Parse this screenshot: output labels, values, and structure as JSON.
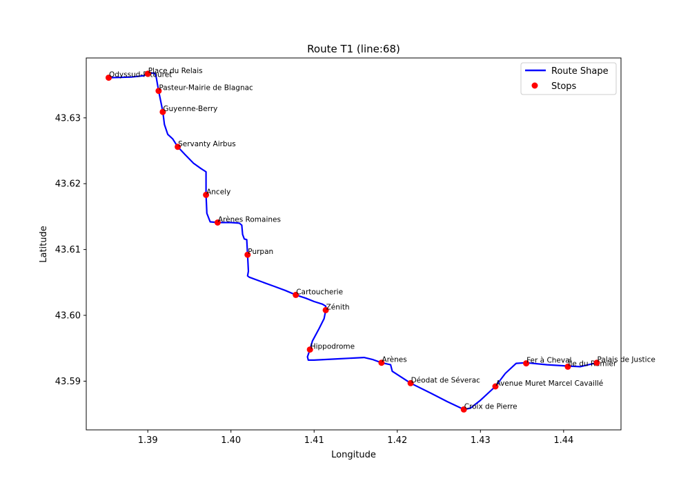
{
  "chart_data": {
    "type": "line",
    "title": "Route T1 (line:68)",
    "xlabel": "Longitude",
    "ylabel": "Latitude",
    "xlim": [
      1.3826,
      1.4469
    ],
    "ylim": [
      43.5826,
      43.6391
    ],
    "xticks": [
      1.39,
      1.4,
      1.41,
      1.42,
      1.43,
      1.44
    ],
    "xtick_labels": [
      "1.39",
      "1.40",
      "1.41",
      "1.42",
      "1.43",
      "1.44"
    ],
    "yticks": [
      43.59,
      43.6,
      43.61,
      43.62,
      43.63
    ],
    "ytick_labels": [
      "43.59",
      "43.60",
      "43.61",
      "43.62",
      "43.63"
    ],
    "grid": false,
    "legend": {
      "placement": "top-right",
      "entries": [
        {
          "label": "Route Shape",
          "kind": "line",
          "color": "#0000ff"
        },
        {
          "label": "Stops",
          "kind": "marker",
          "color": "#ff0000"
        }
      ]
    },
    "series": [
      {
        "name": "Route Shape",
        "color": "#0000ff",
        "points": [
          [
            1.3853,
            43.6361
          ],
          [
            1.388,
            43.6362
          ],
          [
            1.3895,
            43.6364
          ],
          [
            1.3902,
            43.6368
          ],
          [
            1.3908,
            43.6368
          ],
          [
            1.391,
            43.6363
          ],
          [
            1.3913,
            43.6341
          ],
          [
            1.3918,
            43.631
          ],
          [
            1.392,
            43.629
          ],
          [
            1.3924,
            43.6275
          ],
          [
            1.393,
            43.6268
          ],
          [
            1.3936,
            43.6256
          ],
          [
            1.3945,
            43.6244
          ],
          [
            1.3955,
            43.6231
          ],
          [
            1.3964,
            43.6223
          ],
          [
            1.397,
            43.6218
          ],
          [
            1.397,
            43.6183
          ],
          [
            1.3971,
            43.6155
          ],
          [
            1.3975,
            43.6142
          ],
          [
            1.3984,
            43.6141
          ],
          [
            1.4,
            43.6141
          ],
          [
            1.401,
            43.614
          ],
          [
            1.4013,
            43.6137
          ],
          [
            1.4014,
            43.6123
          ],
          [
            1.4016,
            43.6116
          ],
          [
            1.4019,
            43.6115
          ],
          [
            1.402,
            43.6092
          ],
          [
            1.4021,
            43.6067
          ],
          [
            1.402,
            43.606
          ],
          [
            1.4022,
            43.6058
          ],
          [
            1.4037,
            43.6051
          ],
          [
            1.4052,
            43.6044
          ],
          [
            1.4065,
            43.6038
          ],
          [
            1.4078,
            43.6031
          ],
          [
            1.409,
            43.6026
          ],
          [
            1.41,
            43.6021
          ],
          [
            1.411,
            43.6017
          ],
          [
            1.4114,
            43.6014
          ],
          [
            1.4114,
            43.6008
          ],
          [
            1.4112,
            43.5995
          ],
          [
            1.4106,
            43.598
          ],
          [
            1.4098,
            43.5961
          ],
          [
            1.4095,
            43.5948
          ],
          [
            1.4092,
            43.5937
          ],
          [
            1.4093,
            43.5932
          ],
          [
            1.41,
            43.5932
          ],
          [
            1.413,
            43.5934
          ],
          [
            1.416,
            43.5936
          ],
          [
            1.417,
            43.5933
          ],
          [
            1.4181,
            43.5928
          ],
          [
            1.4192,
            43.5925
          ],
          [
            1.4194,
            43.5915
          ],
          [
            1.4205,
            43.5906
          ],
          [
            1.4216,
            43.5897
          ],
          [
            1.424,
            43.5882
          ],
          [
            1.426,
            43.5869
          ],
          [
            1.428,
            43.5857
          ],
          [
            1.4288,
            43.5859
          ],
          [
            1.43,
            43.5871
          ],
          [
            1.4318,
            43.5892
          ],
          [
            1.433,
            43.5912
          ],
          [
            1.4343,
            43.5927
          ],
          [
            1.4355,
            43.5928
          ],
          [
            1.438,
            43.5925
          ],
          [
            1.4405,
            43.5923
          ],
          [
            1.442,
            43.5922
          ],
          [
            1.444,
            43.5928
          ]
        ]
      },
      {
        "name": "Stops",
        "color": "#ff0000",
        "points": [
          {
            "name": "Odyssud-Ritouret",
            "lon": 1.3853,
            "lat": 43.6361
          },
          {
            "name": "Place du Relais",
            "lon": 1.39,
            "lat": 43.6367
          },
          {
            "name": "Pasteur-Mairie de Blagnac",
            "lon": 1.3913,
            "lat": 43.6341
          },
          {
            "name": "Guyenne-Berry",
            "lon": 1.3918,
            "lat": 43.6309
          },
          {
            "name": "Servanty Airbus",
            "lon": 1.3936,
            "lat": 43.6256
          },
          {
            "name": "Ancely",
            "lon": 1.397,
            "lat": 43.6183
          },
          {
            "name": "Arènes Romaines",
            "lon": 1.3984,
            "lat": 43.6141
          },
          {
            "name": "Purpan",
            "lon": 1.402,
            "lat": 43.6092
          },
          {
            "name": "Cartoucherie",
            "lon": 1.4078,
            "lat": 43.6031
          },
          {
            "name": "Zénith",
            "lon": 1.4114,
            "lat": 43.6008
          },
          {
            "name": "Hippodrome",
            "lon": 1.4095,
            "lat": 43.5948
          },
          {
            "name": "Arènes",
            "lon": 1.4181,
            "lat": 43.5928
          },
          {
            "name": "Déodat de Séverac",
            "lon": 1.4216,
            "lat": 43.5897
          },
          {
            "name": "Croix de Pierre",
            "lon": 1.428,
            "lat": 43.5857
          },
          {
            "name": "Avenue Muret Marcel Cavaillé",
            "lon": 1.4318,
            "lat": 43.5892
          },
          {
            "name": "Fer à Cheval",
            "lon": 1.4355,
            "lat": 43.5927
          },
          {
            "name": "Île du Ramier",
            "lon": 1.4405,
            "lat": 43.5922
          },
          {
            "name": "Palais de Justice",
            "lon": 1.444,
            "lat": 43.5928
          }
        ]
      }
    ]
  }
}
